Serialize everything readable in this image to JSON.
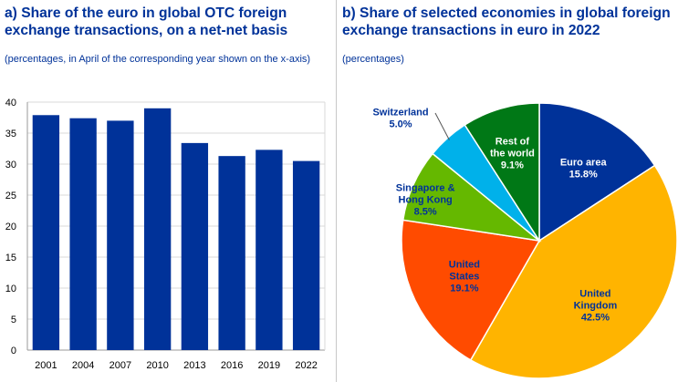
{
  "chart_data": [
    {
      "type": "bar",
      "title": "a) Share of the euro in global OTC foreign exchange transactions, on a net-net basis",
      "subtitle": "(percentages, in April of the corresponding year shown on the x-axis)",
      "categories": [
        "2001",
        "2004",
        "2007",
        "2010",
        "2013",
        "2016",
        "2019",
        "2022"
      ],
      "values": [
        37.9,
        37.4,
        37.0,
        39.0,
        33.4,
        31.3,
        32.3,
        30.5
      ],
      "ylim": [
        0,
        40
      ],
      "yticks": [
        0,
        5,
        10,
        15,
        20,
        25,
        30,
        35,
        40
      ],
      "xlabel": "",
      "ylabel": "",
      "grid": true,
      "bar_color": "#003299"
    },
    {
      "type": "pie",
      "title": "b) Share of selected economies in global foreign exchange transactions in euro in 2022",
      "subtitle": "(percentages)",
      "slices": [
        {
          "label": "Euro area",
          "value": 15.8,
          "value_label": "15.8%",
          "color": "#003299",
          "text_color": "#ffffff"
        },
        {
          "label": "United Kingdom",
          "value": 42.5,
          "value_label": "42.5%",
          "color": "#ffb400",
          "text_color": "#003299"
        },
        {
          "label": "United States",
          "value": 19.1,
          "value_label": "19.1%",
          "color": "#ff4b00",
          "text_color": "#003299"
        },
        {
          "label": "Singapore & Hong Kong",
          "value": 8.5,
          "value_label": "8.5%",
          "color": "#65b800",
          "text_color": "#003299"
        },
        {
          "label": "Switzerland",
          "value": 5.0,
          "value_label": "5.0%",
          "color": "#00b1ea",
          "text_color": "#003299"
        },
        {
          "label": "Rest of the world",
          "value": 9.1,
          "value_label": "9.1%",
          "color": "#007816",
          "text_color": "#ffffff"
        }
      ]
    }
  ]
}
